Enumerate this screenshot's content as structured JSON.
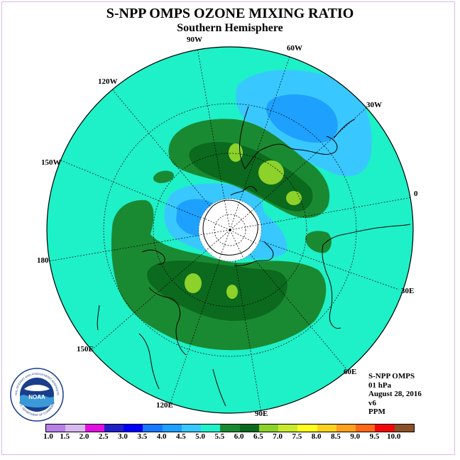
{
  "title": "S-NPP OMPS OZONE MIXING RATIO",
  "subtitle": "Southern Hemisphere",
  "longitude_labels": [
    "90W",
    "60W",
    "120W",
    "30W",
    "150W",
    "0",
    "180",
    "30E",
    "150E",
    "60E",
    "120E",
    "90E"
  ],
  "info": {
    "instrument": "S-NPP OMPS",
    "level": "01 hPa",
    "date": "August 28, 2016",
    "version": "v6",
    "units": "PPM"
  },
  "logo": {
    "name": "noaa-logo",
    "text": "NOAA",
    "ring_text": "NATIONAL OCEANIC AND ATMOSPHERIC ADMINISTRATION",
    "ring_text_bottom": "U.S. DEPARTMENT OF COMMERCE"
  },
  "colorbar": {
    "ticks": [
      "1.0",
      "1.5",
      "2.0",
      "2.5",
      "3.0",
      "3.5",
      "4.0",
      "4.5",
      "5.0",
      "5.5",
      "6.0",
      "6.5",
      "7.0",
      "7.5",
      "8.0",
      "8.5",
      "9.0",
      "9.5",
      "10.0"
    ],
    "colors": [
      "#b87fe8",
      "#d8b8f0",
      "#e010e0",
      "#2020c8",
      "#0000ff",
      "#1878ff",
      "#1ea0ff",
      "#38c8ff",
      "#1ef0c8",
      "#1a8a32",
      "#0b6a1e",
      "#8cd22a",
      "#c8ea2a",
      "#ffff1e",
      "#ffd21e",
      "#ffa01e",
      "#ff6818",
      "#f00808",
      "#8c5028"
    ]
  },
  "map": {
    "background_color": "#1ef0c8",
    "projection": "south-polar-stereographic"
  }
}
